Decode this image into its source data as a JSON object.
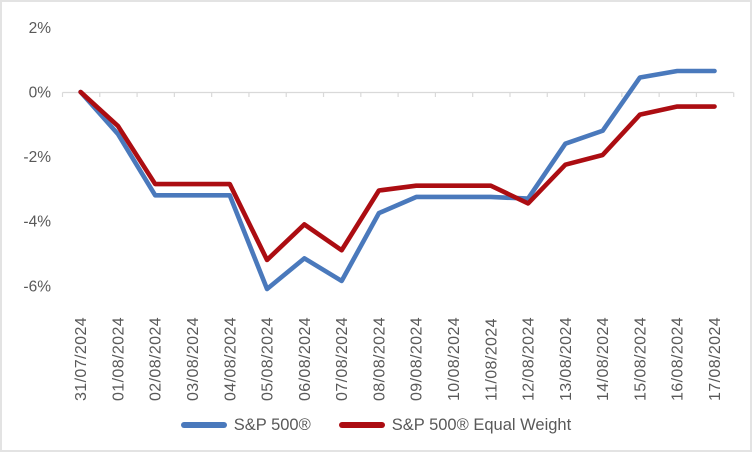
{
  "chart_data": {
    "type": "line",
    "title": "",
    "xlabel": "",
    "ylabel": "",
    "categories": [
      "31/07/2024",
      "01/08/2024",
      "02/08/2024",
      "03/08/2024",
      "04/08/2024",
      "05/08/2024",
      "06/08/2024",
      "07/08/2024",
      "08/08/2024",
      "09/08/2024",
      "10/08/2024",
      "11/08/2024",
      "12/08/2024",
      "13/08/2024",
      "14/08/2024",
      "15/08/2024",
      "16/08/2024",
      "17/08/2024"
    ],
    "series": [
      {
        "name": "S&P 500®",
        "color": "#4A79BC",
        "values": [
          0,
          -1.3,
          -3.2,
          -3.2,
          -3.2,
          -6.1,
          -5.15,
          -5.85,
          -3.75,
          -3.25,
          -3.25,
          -3.25,
          -3.3,
          -1.6,
          -1.2,
          0.45,
          0.65,
          0.65
        ]
      },
      {
        "name": "S&P 500® Equal Weight",
        "color": "#AC0D12",
        "values": [
          0,
          -1.05,
          -2.85,
          -2.85,
          -2.85,
          -5.2,
          -4.1,
          -4.9,
          -3.05,
          -2.9,
          -2.9,
          -2.9,
          -3.45,
          -2.25,
          -1.95,
          -0.7,
          -0.45,
          -0.45
        ]
      }
    ],
    "yticks": [
      2,
      0,
      -2,
      -4,
      -6
    ],
    "ytick_labels": [
      "2%",
      "0%",
      "-2%",
      "-4%",
      "-6%"
    ],
    "ylim": [
      -6.5,
      2.3
    ],
    "unit": "%",
    "grid": false,
    "legend_position": "bottom",
    "axis_color": "#D9D9D9",
    "text_color": "#595959"
  }
}
